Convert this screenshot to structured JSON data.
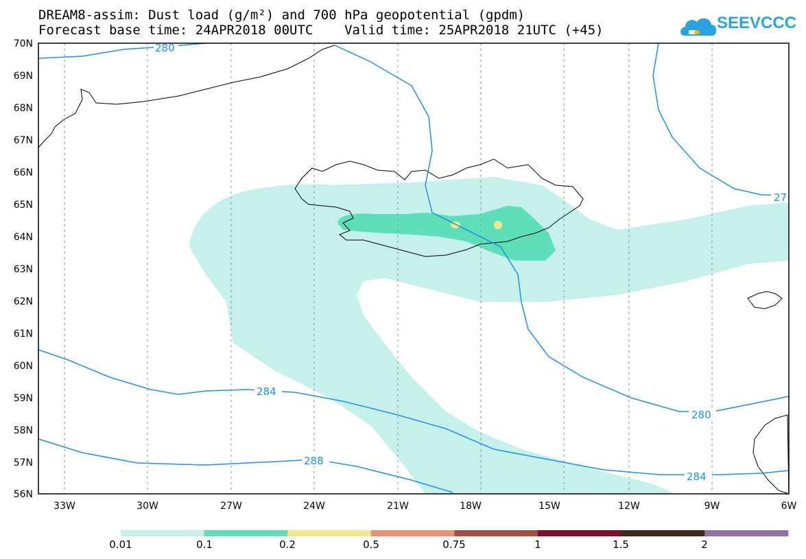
{
  "header": {
    "title_line1": "DREAM8-assim: Dust load (g/m²) and 700 hPa geopotential (gpdm)",
    "title_line2": "Forecast base time: 24APR2018 00UTC    Valid time: 25APR2018 21UTC (+45)"
  },
  "logo": {
    "text": "SEEVCCC",
    "icon": "cloud-logo-icon",
    "color": "#29a4df"
  },
  "map": {
    "lat_labels": [
      "70N",
      "69N",
      "68N",
      "67N",
      "66N",
      "65N",
      "64N",
      "63N",
      "62N",
      "61N",
      "60N",
      "59N",
      "58N",
      "57N",
      "56N"
    ],
    "lon_labels": [
      "33W",
      "30W",
      "27W",
      "24W",
      "21W",
      "18W",
      "15W",
      "12W",
      "9W",
      "6W"
    ],
    "contour_labels": [
      "280",
      "27",
      "280",
      "284",
      "288",
      "284"
    ],
    "contour_color": "#1e90e6",
    "coastline_color": "#000000"
  },
  "colorbar": {
    "labels": [
      "0.01",
      "0.1",
      "0.2",
      "0.5",
      "0.75",
      "1",
      "1.5",
      "2"
    ],
    "colors": [
      "#c6f0ea",
      "#5edfb9",
      "#f3e88a",
      "#ea9370",
      "#a44e47",
      "#7a0f2e",
      "#3f2a18",
      "#9470a0"
    ]
  }
}
